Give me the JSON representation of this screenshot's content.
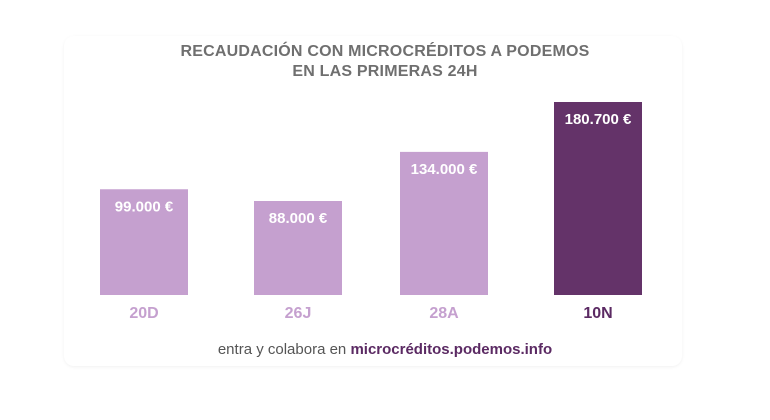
{
  "chart_data": {
    "type": "bar",
    "title_lines": [
      "RECAUDACIÓN CON MICROCRÉDITOS A PODEMOS",
      "EN LAS PRIMERAS 24H"
    ],
    "categories": [
      "20D",
      "26J",
      "28A",
      "10N"
    ],
    "values": [
      99000,
      88000,
      134000,
      180700
    ],
    "value_labels": [
      "99.000 €",
      "88.000 €",
      "134.000 €",
      "180.700 €"
    ],
    "highlight_index": 3,
    "ylim": [
      0,
      180700
    ],
    "grid": false,
    "xlabel": "",
    "ylabel": ""
  },
  "colors": {
    "bar": "#c5a0cf",
    "bar_highlight": "#643369",
    "category_label": "#c5a0cf",
    "category_label_highlight": "#5b2a63",
    "value_label": "#ffffff"
  },
  "footer": {
    "text": "entra y colabora en ",
    "url": "microcréditos.podemos.info"
  }
}
